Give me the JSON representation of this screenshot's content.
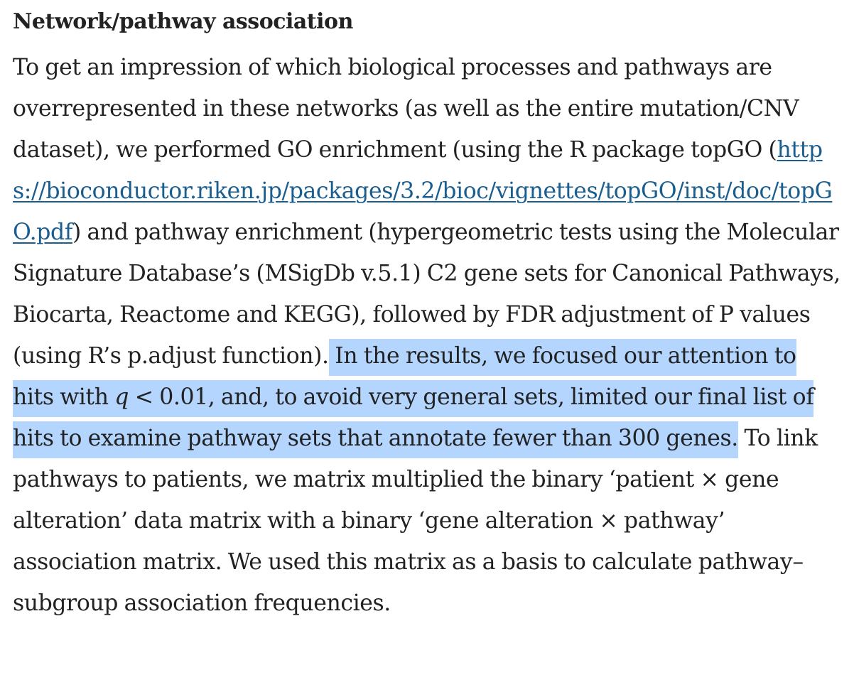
{
  "section": {
    "title": "Network/pathway association"
  },
  "paragraph": {
    "part1": "To get an impression of which biological processes and pathways are overrepresented in these networks (as well as the entire mutation/CNV dataset), we performed GO enrichment (using the R package topGO (",
    "link_text": "https://bioconductor.riken.jp/packages/3.2/bioc/vignettes/topGO/inst/doc/topGO.pdf",
    "part2": ") and pathway enrichment (hypergeometric tests using the Molecular Signature Database’s (MSigDb v.5.1) C2 gene sets for Canonical Pathways, Biocarta, Reactome and KEGG), followed by FDR adjustment of P values (using R’s p.adjust function).",
    "highlight_a": " In the results, we focused our attention to hits with ",
    "highlight_q": "q",
    "highlight_b": " < 0.01, and, to avoid very general sets, limited our final list of hits to examine pathway sets that annotate fewer than 300 genes.",
    "part3": " To link pathways to patients, we matrix multiplied the binary ‘patient × gene alteration’ data matrix with a binary ‘gene alteration × pathway’ association matrix. We used this matrix as a basis to calculate pathway–subgroup association frequencies."
  },
  "colors": {
    "text": "#222222",
    "link": "#1a5d8f",
    "selection_highlight": "#b4d5fe"
  }
}
